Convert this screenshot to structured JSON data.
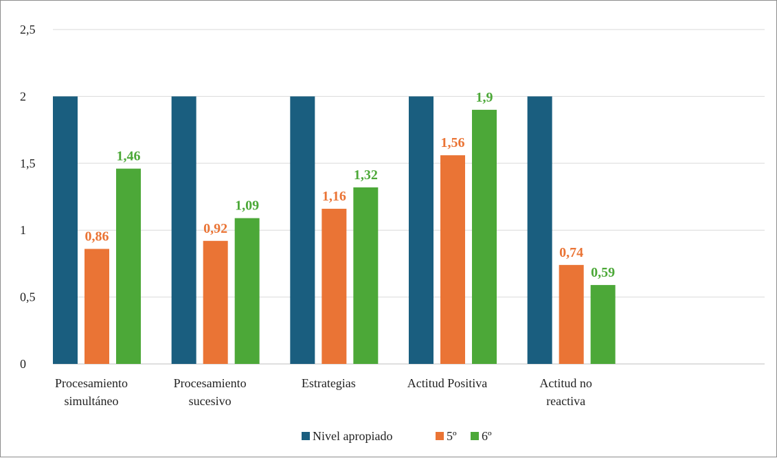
{
  "chart_data": {
    "type": "bar",
    "categories": [
      [
        "Procesamiento",
        "simultáneo"
      ],
      [
        "Procesamiento",
        "sucesivo"
      ],
      [
        "Estrategias"
      ],
      [
        "Actitud Positiva"
      ],
      [
        "Actitud no",
        "reactiva"
      ],
      [
        ""
      ]
    ],
    "series": [
      {
        "name": "Nivel apropiado",
        "color": "#1a5e7f",
        "values": [
          2,
          2,
          2,
          2,
          2,
          null
        ],
        "labels": [
          null,
          null,
          null,
          null,
          null,
          null
        ]
      },
      {
        "name": "5º",
        "color": "#ea7435",
        "values": [
          0.86,
          0.92,
          1.16,
          1.56,
          0.74,
          null
        ],
        "labels": [
          "0,86",
          "0,92",
          "1,16",
          "1,56",
          "0,74",
          null
        ]
      },
      {
        "name": "6º",
        "color": "#4ca838",
        "values": [
          1.46,
          1.09,
          1.32,
          1.9,
          0.59,
          null
        ],
        "labels": [
          "1,46",
          "1,09",
          "1,32",
          "1,9",
          "0,59",
          null
        ]
      }
    ],
    "yticks": [
      {
        "value": 0,
        "label": "0"
      },
      {
        "value": 0.5,
        "label": "0,5"
      },
      {
        "value": 1,
        "label": "1"
      },
      {
        "value": 1.5,
        "label": "1,5"
      },
      {
        "value": 2,
        "label": "2"
      },
      {
        "value": 2.5,
        "label": "2,5"
      }
    ],
    "ylim": [
      0,
      2.5
    ],
    "grid": true,
    "legend_position": "bottom",
    "title": "",
    "xlabel": "",
    "ylabel": ""
  }
}
